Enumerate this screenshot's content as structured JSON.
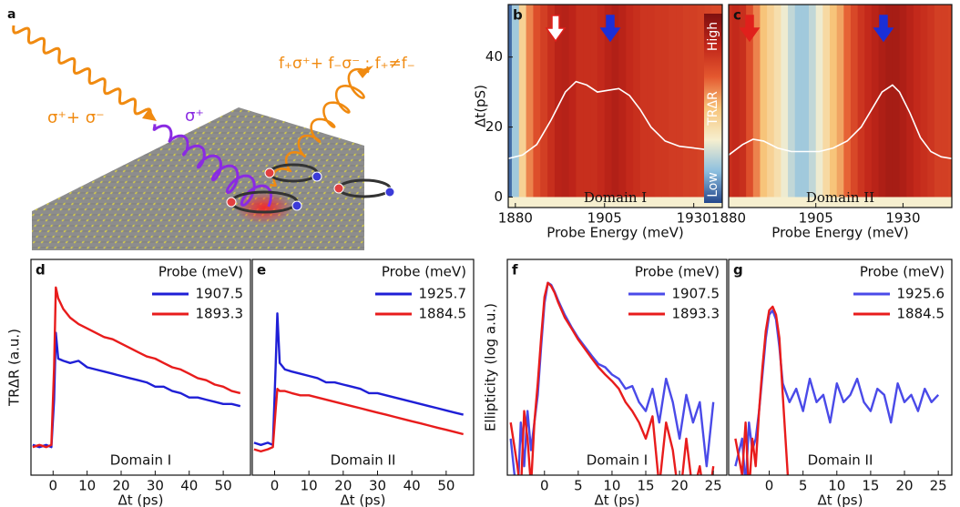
{
  "illustration": {
    "label": "a",
    "incident_text": "σ⁺+ σ⁻",
    "circular_text": "σ⁺",
    "reflected_text": "f₊σ⁺+ f₋σ⁻ ; f₊≠f₋"
  },
  "chart_data": [
    {
      "type": "heatmap",
      "label": "b",
      "xlabel": "Probe Energy (meV)",
      "ylabel": "Δt(pS)",
      "annotation": "Domain I",
      "colorbar_labels": [
        "High",
        "TRΔR",
        "Low"
      ],
      "colormap": [
        "#24478c",
        "#8cbfdf",
        "#f6efcf",
        "#f7c47a",
        "#e4582f",
        "#c02519",
        "#7e1010"
      ],
      "x": [
        1878,
        1880,
        1882,
        1884,
        1886,
        1888,
        1890,
        1892,
        1894,
        1896,
        1898,
        1900,
        1902,
        1904,
        1906,
        1908,
        1910,
        1912,
        1914,
        1916,
        1918,
        1920,
        1922,
        1924,
        1926,
        1928,
        1930,
        1932,
        1934,
        1936,
        1938
      ],
      "values": [
        0.05,
        0.2,
        0.45,
        0.6,
        0.7,
        0.75,
        0.8,
        0.85,
        0.86,
        0.84,
        0.8,
        0.8,
        0.8,
        0.82,
        0.85,
        0.87,
        0.85,
        0.82,
        0.8,
        0.78,
        0.78,
        0.77,
        0.77,
        0.76,
        0.76,
        0.75,
        0.75,
        0.74,
        0.73,
        0.72,
        0.72
      ],
      "series": [
        {
          "color": "#ffffff",
          "x": [
            1878,
            1882,
            1886,
            1890,
            1894,
            1897,
            1900,
            1903,
            1906,
            1909,
            1912,
            1915,
            1918,
            1922,
            1926,
            1930,
            1934,
            1938
          ],
          "values": [
            11,
            12,
            15,
            22,
            30,
            33,
            32,
            30,
            30.5,
            31,
            29,
            25,
            20,
            16,
            14.5,
            14,
            13.5,
            13
          ]
        }
      ],
      "xlim": [
        1878,
        1938
      ],
      "ylim": [
        -3,
        55
      ],
      "xticks": [
        1880,
        1905,
        1930
      ],
      "yticks": [
        0,
        20,
        40
      ]
    },
    {
      "type": "heatmap",
      "label": "c",
      "xlabel": "Probe Energy (meV)",
      "annotation": "Domain II",
      "colormap": [
        "#24478c",
        "#8cbfdf",
        "#f6efcf",
        "#f7c47a",
        "#e4582f",
        "#c02519",
        "#7e1010"
      ],
      "x": [
        1880,
        1882,
        1884,
        1886,
        1888,
        1890,
        1892,
        1894,
        1896,
        1898,
        1900,
        1902,
        1904,
        1906,
        1908,
        1910,
        1912,
        1914,
        1916,
        1918,
        1920,
        1922,
        1924,
        1926,
        1928,
        1930,
        1932,
        1934,
        1936,
        1938,
        1940,
        1942,
        1944
      ],
      "values": [
        0.8,
        0.82,
        0.8,
        0.7,
        0.6,
        0.5,
        0.45,
        0.4,
        0.32,
        0.25,
        0.2,
        0.2,
        0.25,
        0.32,
        0.42,
        0.5,
        0.55,
        0.65,
        0.72,
        0.78,
        0.82,
        0.85,
        0.88,
        0.9,
        0.9,
        0.88,
        0.85,
        0.82,
        0.8,
        0.78,
        0.75,
        0.75,
        0.74
      ],
      "series": [
        {
          "color": "#ffffff",
          "x": [
            1880,
            1884,
            1887,
            1890,
            1894,
            1898,
            1902,
            1906,
            1910,
            1914,
            1918,
            1921,
            1924,
            1927,
            1929,
            1932,
            1935,
            1938,
            1941,
            1944
          ],
          "values": [
            12,
            15,
            16.5,
            16,
            14,
            13,
            13,
            13,
            14,
            16,
            20,
            25,
            30,
            32,
            30,
            24,
            17,
            13,
            11.5,
            11
          ]
        }
      ],
      "xlim": [
        1880,
        1944
      ],
      "ylim": [
        -3,
        55
      ],
      "xticks": [
        1880,
        1905,
        1930
      ]
    },
    {
      "type": "line",
      "label": "d",
      "xlabel": "Δt (ps)",
      "ylabel": "TRΔR (a.u.)",
      "annotation": "Domain I",
      "legend_title": "Probe (meV)",
      "legend": "top-right",
      "x": [
        -6,
        -4,
        -2,
        -0.5,
        0.3,
        0.8,
        1.5,
        3,
        5,
        7.5,
        10,
        12.5,
        15,
        17.5,
        20,
        22.5,
        25,
        27.5,
        30,
        32.5,
        35,
        37.5,
        40,
        42.5,
        45,
        47.5,
        50,
        52.5,
        55
      ],
      "series": [
        {
          "name": "1907.5",
          "color": "#1f1fd6",
          "values": [
            0.14,
            0.13,
            0.14,
            0.13,
            0.35,
            0.66,
            0.54,
            0.53,
            0.52,
            0.53,
            0.5,
            0.49,
            0.48,
            0.47,
            0.46,
            0.45,
            0.44,
            0.43,
            0.41,
            0.41,
            0.39,
            0.38,
            0.36,
            0.36,
            0.35,
            0.34,
            0.33,
            0.33,
            0.32
          ]
        },
        {
          "name": "1893.3",
          "color": "#e81c1c",
          "values": [
            0.13,
            0.14,
            0.13,
            0.14,
            0.5,
            0.87,
            0.82,
            0.77,
            0.73,
            0.7,
            0.68,
            0.66,
            0.64,
            0.63,
            0.61,
            0.59,
            0.57,
            0.55,
            0.54,
            0.52,
            0.5,
            0.49,
            0.47,
            0.45,
            0.44,
            0.42,
            0.41,
            0.39,
            0.38
          ]
        }
      ],
      "xlim": [
        -6.5,
        58
      ],
      "ylim": [
        0,
        1
      ],
      "xticks": [
        0,
        10,
        20,
        30,
        40,
        50
      ]
    },
    {
      "type": "line",
      "label": "e",
      "xlabel": "Δt (ps)",
      "annotation": "Domain II",
      "legend_title": "Probe (meV)",
      "legend": "top-right",
      "x": [
        -6,
        -4,
        -2,
        -0.5,
        0.3,
        0.8,
        1.5,
        3,
        5,
        7.5,
        10,
        12.5,
        15,
        17.5,
        20,
        22.5,
        25,
        27.5,
        30,
        32.5,
        35,
        37.5,
        40,
        42.5,
        45,
        47.5,
        50,
        52.5,
        55
      ],
      "series": [
        {
          "name": "1925.7",
          "color": "#1f1fd6",
          "values": [
            0.15,
            0.14,
            0.15,
            0.14,
            0.5,
            0.75,
            0.52,
            0.49,
            0.48,
            0.47,
            0.46,
            0.45,
            0.43,
            0.43,
            0.42,
            0.41,
            0.4,
            0.38,
            0.38,
            0.37,
            0.36,
            0.35,
            0.34,
            0.33,
            0.32,
            0.31,
            0.3,
            0.29,
            0.28
          ]
        },
        {
          "name": "1884.5",
          "color": "#e81c1c",
          "values": [
            0.12,
            0.11,
            0.12,
            0.13,
            0.3,
            0.4,
            0.39,
            0.39,
            0.38,
            0.37,
            0.37,
            0.36,
            0.35,
            0.34,
            0.33,
            0.32,
            0.31,
            0.3,
            0.29,
            0.28,
            0.27,
            0.26,
            0.25,
            0.24,
            0.23,
            0.22,
            0.21,
            0.2,
            0.19
          ]
        }
      ],
      "xlim": [
        -6.5,
        58
      ],
      "ylim": [
        0,
        1
      ],
      "xticks": [
        0,
        10,
        20,
        30,
        40,
        50
      ]
    },
    {
      "type": "line",
      "label": "f",
      "xlabel": "Δt (ps)",
      "ylabel": "Ellipticity (log a.u.)",
      "annotation": "Domain I",
      "legend_title": "Probe (meV)",
      "legend": "top-right",
      "log_y": true,
      "x": [
        -5,
        -4,
        -3.5,
        -3,
        -2.5,
        -2,
        -1.5,
        -1,
        -0.5,
        0,
        0.5,
        1,
        1.5,
        2,
        3,
        4,
        5,
        6,
        7,
        8,
        9,
        10,
        11,
        12,
        13,
        14,
        15,
        16,
        17,
        18,
        19,
        20,
        21,
        22,
        23,
        24,
        25
      ],
      "series": [
        {
          "name": "1907.5",
          "color": "#4a4ae8",
          "values": [
            0.02,
            0.004,
            0.03,
            0.01,
            0.04,
            0.015,
            0.03,
            0.06,
            0.2,
            0.6,
            1.0,
            0.95,
            0.8,
            0.65,
            0.45,
            0.33,
            0.25,
            0.2,
            0.16,
            0.13,
            0.12,
            0.1,
            0.09,
            0.07,
            0.075,
            0.05,
            0.04,
            0.07,
            0.03,
            0.09,
            0.05,
            0.02,
            0.06,
            0.03,
            0.05,
            0.01,
            0.05
          ]
        },
        {
          "name": "1893.3",
          "color": "#e81c1c",
          "values": [
            0.03,
            0.01,
            0.005,
            0.04,
            0.02,
            0.006,
            0.03,
            0.08,
            0.25,
            0.7,
            1.0,
            0.92,
            0.78,
            0.62,
            0.42,
            0.32,
            0.24,
            0.19,
            0.15,
            0.12,
            0.1,
            0.085,
            0.07,
            0.05,
            0.04,
            0.03,
            0.02,
            0.035,
            0.006,
            0.03,
            0.015,
            0.004,
            0.02,
            0.005,
            0.01,
            0.003,
            0.01
          ]
        }
      ],
      "xlim": [
        -5.5,
        27
      ],
      "ylim": [
        0.008,
        1.8
      ],
      "xticks": [
        0,
        5,
        10,
        15,
        20,
        25
      ]
    },
    {
      "type": "line",
      "label": "g",
      "xlabel": "Δt (ps)",
      "annotation": "Domain II",
      "legend_title": "Probe (meV)",
      "legend": "top-right",
      "log_y": true,
      "x": [
        -5,
        -4,
        -3.5,
        -3,
        -2.5,
        -2,
        -1.5,
        -1,
        -0.5,
        0,
        0.5,
        1,
        1.5,
        2,
        3,
        4,
        5,
        6,
        7,
        8,
        9,
        10,
        11,
        12,
        13,
        14,
        15,
        16,
        17,
        18,
        19,
        20,
        21,
        22,
        23,
        24,
        25
      ],
      "series": [
        {
          "name": "1925.6",
          "color": "#4a4ae8",
          "values": [
            0.01,
            0.02,
            0.006,
            0.03,
            0.015,
            0.02,
            0.04,
            0.1,
            0.25,
            0.45,
            0.5,
            0.4,
            0.2,
            0.08,
            0.05,
            0.07,
            0.04,
            0.09,
            0.05,
            0.06,
            0.03,
            0.08,
            0.05,
            0.06,
            0.09,
            0.05,
            0.04,
            0.07,
            0.06,
            0.03,
            0.08,
            0.05,
            0.06,
            0.04,
            0.07,
            0.05,
            0.06
          ]
        },
        {
          "name": "1884.5",
          "color": "#e81c1c",
          "values": [
            0.02,
            0.008,
            0.03,
            0.005,
            0.02,
            0.01,
            0.04,
            0.12,
            0.3,
            0.5,
            0.55,
            0.45,
            0.25,
            0.06,
            0.004,
            null,
            null,
            null,
            null,
            null,
            null,
            null,
            null,
            null,
            null,
            null,
            null,
            null,
            null,
            null,
            null,
            null,
            null,
            null,
            null,
            null,
            null
          ]
        }
      ],
      "xlim": [
        -6,
        27
      ],
      "ylim": [
        0.008,
        1.8
      ],
      "xticks": [
        0,
        5,
        10,
        15,
        20,
        25
      ]
    }
  ]
}
